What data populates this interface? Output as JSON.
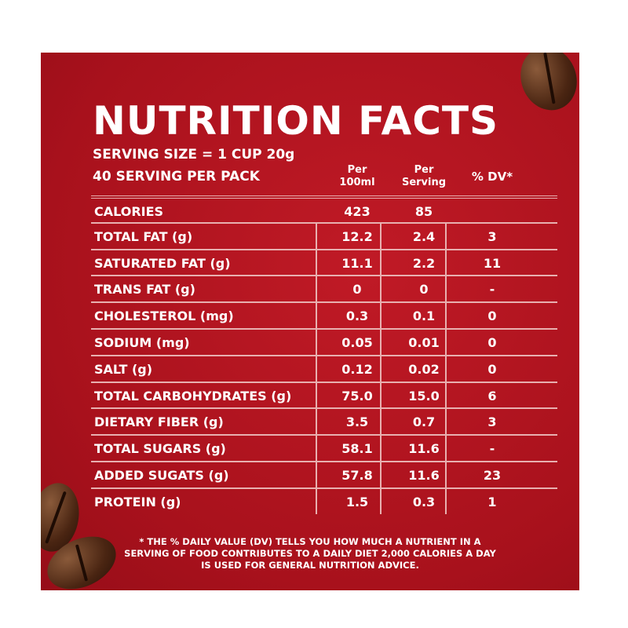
{
  "title": "NUTRITION FACTS",
  "serving_size": "SERVING SIZE = 1 CUP 20g",
  "servings_per_pack": "40 SERVING PER PACK",
  "columns": {
    "per100_a": "Per",
    "per100_b": "100ml",
    "perserv_a": "Per",
    "perserv_b": "Serving",
    "dv": "% DV*"
  },
  "rows": [
    {
      "label": "CALORIES",
      "per100": "423",
      "serving": "85",
      "dv": ""
    },
    {
      "label": "TOTAL FAT (g)",
      "per100": "12.2",
      "serving": "2.4",
      "dv": "3"
    },
    {
      "label": "SATURATED FAT (g)",
      "per100": "11.1",
      "serving": "2.2",
      "dv": "11"
    },
    {
      "label": "TRANS FAT (g)",
      "per100": "0",
      "serving": "0",
      "dv": "-"
    },
    {
      "label": "CHOLESTEROL (mg)",
      "per100": "0.3",
      "serving": "0.1",
      "dv": "0"
    },
    {
      "label": "SODIUM (mg)",
      "per100": "0.05",
      "serving": "0.01",
      "dv": "0"
    },
    {
      "label": "SALT (g)",
      "per100": "0.12",
      "serving": "0.02",
      "dv": "0"
    },
    {
      "label": "TOTAL CARBOHYDRATES (g)",
      "per100": "75.0",
      "serving": "15.0",
      "dv": "6"
    },
    {
      "label": "DIETARY FIBER (g)",
      "per100": "3.5",
      "serving": "0.7",
      "dv": "3"
    },
    {
      "label": "TOTAL SUGARS (g)",
      "per100": "58.1",
      "serving": "11.6",
      "dv": "-"
    },
    {
      "label": "ADDED SUGATS (g)",
      "per100": "57.8",
      "serving": "11.6",
      "dv": "23"
    },
    {
      "label": "PROTEIN (g)",
      "per100": "1.5",
      "serving": "0.3",
      "dv": "1"
    }
  ],
  "footnote": "* THE % DAILY VALUE (DV) TELLS YOU HOW MUCH A NUTRIENT IN A SERVING OF FOOD CONTRIBUTES TO A DAILY DIET 2,000 CALORIES A DAY IS USED FOR GENERAL NUTRITION ADVICE."
}
